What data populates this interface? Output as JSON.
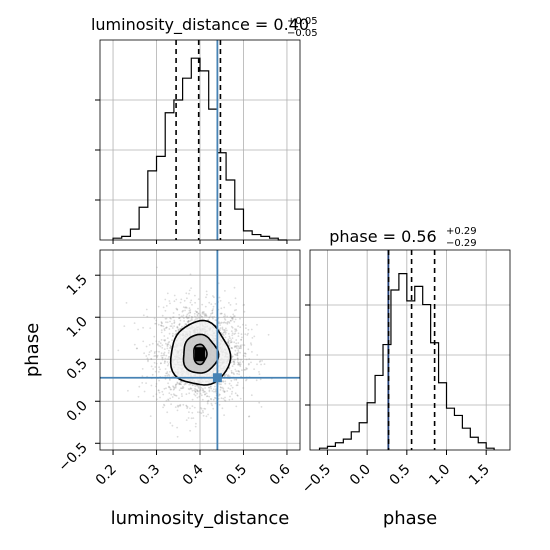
{
  "chart_data": [
    {
      "type": "histogram",
      "panel": "luminosity_distance-marginal",
      "title": {
        "main": "luminosity_distance = 0.40",
        "sup": "+0.05",
        "sub": "−0.05"
      },
      "grid": true,
      "xlim": [
        0.17,
        0.63
      ],
      "ylim": [
        0,
        1.0
      ],
      "bin_edges": [
        0.2,
        0.22,
        0.24,
        0.26,
        0.28,
        0.3,
        0.32,
        0.34,
        0.36,
        0.38,
        0.4,
        0.42,
        0.44,
        0.46,
        0.48,
        0.5,
        0.52,
        0.54,
        0.56,
        0.58,
        0.6
      ],
      "counts": [
        0.01,
        0.02,
        0.06,
        0.18,
        0.38,
        0.46,
        0.7,
        0.77,
        0.89,
        1.0,
        0.93,
        0.72,
        0.48,
        0.33,
        0.17,
        0.05,
        0.03,
        0.02,
        0.01,
        0.0
      ],
      "quantile_lines": [
        0.345,
        0.397,
        0.447
      ],
      "truth": 0.44,
      "colors": {
        "hist": "#000000",
        "quantile": "#000000",
        "truth": "#4682b4"
      }
    },
    {
      "type": "scatter",
      "panel": "joint",
      "xlabel": "luminosity_distance",
      "ylabel": "phase",
      "grid": true,
      "xlim": [
        0.17,
        0.63
      ],
      "ylim": [
        -0.58,
        1.8
      ],
      "xticks": [
        "0.2",
        "0.3",
        "0.4",
        "0.5",
        "0.6"
      ],
      "xtick_values": [
        0.2,
        0.3,
        0.4,
        0.5,
        0.6
      ],
      "yticks": [
        "−0.5",
        "0.0",
        "0.5",
        "1.0",
        "1.5"
      ],
      "ytick_values": [
        -0.5,
        0.0,
        0.5,
        1.0,
        1.5
      ],
      "center": [
        0.4,
        0.56
      ],
      "spread": [
        0.05,
        0.29
      ],
      "contours": [
        {
          "level": "inner",
          "rx": 0.015,
          "ry": 0.12
        },
        {
          "level": "mid",
          "rx": 0.04,
          "ry": 0.23
        },
        {
          "level": "outer",
          "rx": 0.068,
          "ry": 0.38
        }
      ],
      "truth": [
        0.44,
        0.28
      ],
      "colors": {
        "points": "#9a9a9a",
        "contour": "#000000",
        "truth": "#4682b4"
      }
    },
    {
      "type": "histogram",
      "panel": "phase-marginal",
      "title": {
        "main": "phase = 0.56",
        "sup": "+0.29",
        "sub": "−0.29"
      },
      "xlabel": "phase",
      "grid": true,
      "xlim": [
        -0.72,
        1.8
      ],
      "ylim": [
        0,
        1.0
      ],
      "xticks": [
        "−0.5",
        "0.0",
        "0.5",
        "1.0",
        "1.5"
      ],
      "xtick_values": [
        -0.5,
        0.0,
        0.5,
        1.0,
        1.5
      ],
      "bin_edges": [
        -0.6,
        -0.5,
        -0.4,
        -0.3,
        -0.2,
        -0.1,
        0.0,
        0.1,
        0.2,
        0.3,
        0.4,
        0.5,
        0.6,
        0.7,
        0.8,
        0.9,
        1.0,
        1.1,
        1.2,
        1.3,
        1.4,
        1.5,
        1.6
      ],
      "counts": [
        0.01,
        0.02,
        0.04,
        0.06,
        0.1,
        0.15,
        0.26,
        0.41,
        0.58,
        0.88,
        0.97,
        0.82,
        0.9,
        0.8,
        0.59,
        0.37,
        0.23,
        0.19,
        0.12,
        0.07,
        0.04,
        0.01
      ],
      "quantile_lines": [
        0.27,
        0.56,
        0.85
      ],
      "truth": 0.28,
      "colors": {
        "hist": "#000000",
        "quantile": "#000000",
        "truth": "#1f3b73"
      }
    }
  ]
}
